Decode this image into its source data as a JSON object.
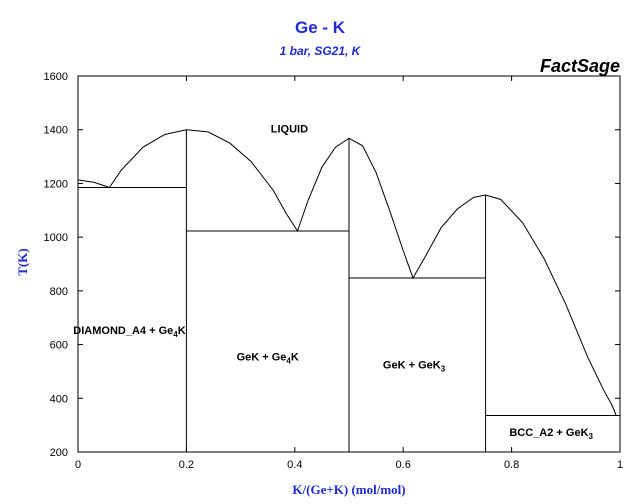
{
  "chart_data": {
    "type": "line",
    "title": "Ge - K",
    "subtitle": "1 bar, SG21, K",
    "brand": "FactSage",
    "xlabel": "K/(Ge+K) (mol/mol)",
    "ylabel": "T(K)",
    "xlim": [
      0,
      1
    ],
    "ylim": [
      200,
      1600
    ],
    "x_ticks": [
      "0",
      "0.2",
      "0.4",
      "0.6",
      "0.8",
      "1"
    ],
    "y_ticks": [
      "200",
      "400",
      "600",
      "800",
      "1000",
      "1200",
      "1400",
      "1600"
    ],
    "grid": false,
    "colors": {
      "title": "#1f2bd0",
      "lines": "#000000"
    },
    "liquidus": [
      [
        0.0,
        1213
      ],
      [
        0.03,
        1204
      ],
      [
        0.058,
        1185
      ],
      [
        0.08,
        1250
      ],
      [
        0.12,
        1335
      ],
      [
        0.16,
        1382
      ],
      [
        0.2,
        1400
      ],
      [
        0.24,
        1392
      ],
      [
        0.28,
        1350
      ],
      [
        0.32,
        1280
      ],
      [
        0.36,
        1175
      ],
      [
        0.385,
        1085
      ],
      [
        0.405,
        1023
      ],
      [
        0.425,
        1140
      ],
      [
        0.45,
        1260
      ],
      [
        0.475,
        1335
      ],
      [
        0.5,
        1368
      ],
      [
        0.525,
        1340
      ],
      [
        0.55,
        1240
      ],
      [
        0.575,
        1100
      ],
      [
        0.6,
        950
      ],
      [
        0.618,
        848
      ],
      [
        0.64,
        925
      ],
      [
        0.67,
        1035
      ],
      [
        0.7,
        1105
      ],
      [
        0.73,
        1148
      ],
      [
        0.752,
        1157
      ],
      [
        0.78,
        1140
      ],
      [
        0.82,
        1055
      ],
      [
        0.86,
        920
      ],
      [
        0.9,
        750
      ],
      [
        0.94,
        555
      ],
      [
        0.97,
        430
      ],
      [
        0.985,
        375
      ],
      [
        0.993,
        336
      ]
    ],
    "solidus": [
      {
        "x": [
          0.0,
          0.2
        ],
        "y": [
          1185,
          1185
        ]
      },
      {
        "x": [
          0.2,
          0.5
        ],
        "y": [
          1023,
          1023
        ]
      },
      {
        "x": [
          0.5,
          0.752
        ],
        "y": [
          848,
          848
        ]
      },
      {
        "x": [
          0.752,
          1.0
        ],
        "y": [
          336,
          336
        ]
      }
    ],
    "compound_lines": [
      {
        "x": [
          0.2,
          0.2
        ],
        "y": [
          200,
          1400
        ]
      },
      {
        "x": [
          0.5,
          0.5
        ],
        "y": [
          200,
          1368
        ]
      },
      {
        "x": [
          0.752,
          0.752
        ],
        "y": [
          200,
          1157
        ]
      }
    ],
    "regions": [
      {
        "label": "LIQUID",
        "sub": "",
        "tail": "",
        "x": 0.39,
        "y": 1390
      },
      {
        "label": "DIAMOND_A4 + Ge",
        "sub": "4",
        "tail": "K",
        "x": 0.095,
        "y": 640
      },
      {
        "label": "GeK + Ge",
        "sub": "4",
        "tail": "K",
        "x": 0.35,
        "y": 540
      },
      {
        "label": "GeK + GeK",
        "sub": "3",
        "tail": "",
        "x": 0.62,
        "y": 510
      },
      {
        "label": "BCC_A2 + GeK",
        "sub": "3",
        "tail": "",
        "x": 0.873,
        "y": 260
      }
    ]
  }
}
